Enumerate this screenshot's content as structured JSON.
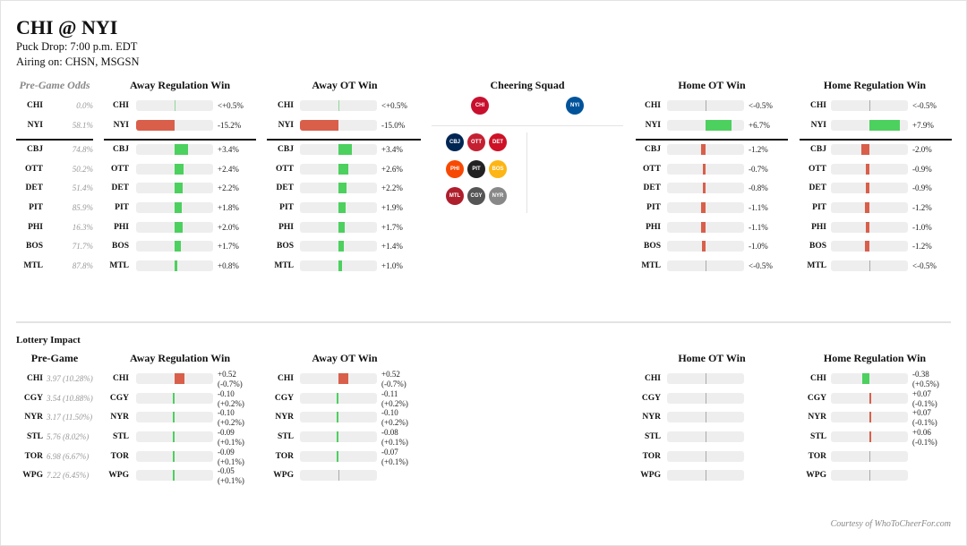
{
  "header": {
    "title": "CHI @ NYI",
    "puck_drop": "Puck Drop: 7:00 p.m. EDT",
    "airing": "Airing on: CHSN, MSGSN"
  },
  "colors": {
    "positive": "#4cd05e",
    "negative": "#d95f4a",
    "track": "#eeeeee",
    "neutral": "#aaaaaa"
  },
  "playoff": {
    "pregame_header": "Pre-Game Odds",
    "columns": [
      "Away Regulation Win",
      "Away OT Win",
      "Home OT Win",
      "Home Regulation Win"
    ],
    "cheering_header": "Cheering Squad",
    "teams": [
      {
        "team": "CHI",
        "odds": "0.0%",
        "values": [
          0.3,
          0.3,
          -0.3,
          -0.3
        ],
        "labels": [
          "<+0.5%",
          "<+0.5%",
          "<-0.5%",
          "<-0.5%"
        ]
      },
      {
        "team": "NYI",
        "odds": "58.1%",
        "values": [
          -15.2,
          -15.0,
          6.7,
          7.9
        ],
        "labels": [
          "-15.2%",
          "-15.0%",
          "+6.7%",
          "+7.9%"
        ]
      },
      {
        "team": "CBJ",
        "odds": "74.8%",
        "values": [
          3.4,
          3.4,
          -1.2,
          -2.0
        ],
        "labels": [
          "+3.4%",
          "+3.4%",
          "-1.2%",
          "-2.0%"
        ]
      },
      {
        "team": "OTT",
        "odds": "50.2%",
        "values": [
          2.4,
          2.6,
          -0.7,
          -0.9
        ],
        "labels": [
          "+2.4%",
          "+2.6%",
          "-0.7%",
          "-0.9%"
        ]
      },
      {
        "team": "DET",
        "odds": "51.4%",
        "values": [
          2.2,
          2.2,
          -0.8,
          -0.9
        ],
        "labels": [
          "+2.2%",
          "+2.2%",
          "-0.8%",
          "-0.9%"
        ]
      },
      {
        "team": "PIT",
        "odds": "85.9%",
        "values": [
          1.8,
          1.9,
          -1.1,
          -1.2
        ],
        "labels": [
          "+1.8%",
          "+1.9%",
          "-1.1%",
          "-1.2%"
        ]
      },
      {
        "team": "PHI",
        "odds": "16.3%",
        "values": [
          2.0,
          1.7,
          -1.1,
          -1.0
        ],
        "labels": [
          "+2.0%",
          "+1.7%",
          "-1.1%",
          "-1.0%"
        ]
      },
      {
        "team": "BOS",
        "odds": "71.7%",
        "values": [
          1.7,
          1.4,
          -1.0,
          -1.2
        ],
        "labels": [
          "+1.7%",
          "+1.4%",
          "-1.0%",
          "-1.2%"
        ]
      },
      {
        "team": "MTL",
        "odds": "87.8%",
        "values": [
          0.8,
          1.0,
          -0.3,
          -0.3
        ],
        "labels": [
          "+0.8%",
          "+1.0%",
          "<-0.5%",
          "<-0.5%"
        ]
      }
    ],
    "cheering": {
      "away_logo": {
        "icon": "blackhawks-logo",
        "abbr": "CHI",
        "color": "#c8102e"
      },
      "home_logo": {
        "icon": "islanders-logo",
        "abbr": "NYI",
        "color": "#00539b"
      },
      "squad": [
        {
          "icon": "blue-jackets-logo",
          "abbr": "CBJ",
          "color": "#002654"
        },
        {
          "icon": "senators-logo",
          "abbr": "OTT",
          "color": "#c52032"
        },
        {
          "icon": "red-wings-logo",
          "abbr": "DET",
          "color": "#ce1126"
        },
        {
          "icon": "flyers-logo",
          "abbr": "PHI",
          "color": "#f74902"
        },
        {
          "icon": "penguins-logo",
          "abbr": "PIT",
          "color": "#222222"
        },
        {
          "icon": "bruins-logo",
          "abbr": "BOS",
          "color": "#fcb514"
        },
        {
          "icon": "canadiens-logo",
          "abbr": "MTL",
          "color": "#af1e2d"
        },
        {
          "icon": "flames-logo",
          "abbr": "CGY",
          "color": "#555555"
        },
        {
          "icon": "rangers-logo",
          "abbr": "NYR",
          "color": "#888888"
        }
      ]
    }
  },
  "lottery": {
    "title": "Lottery Impact",
    "pregame_header": "Pre-Game",
    "columns": [
      "Away Regulation Win",
      "Away OT Win",
      "Home OT Win",
      "Home Regulation Win"
    ],
    "teams": [
      {
        "team": "CHI",
        "pregame": "3.97 (10.28%)",
        "values": [
          0.52,
          0.52,
          0,
          -0.38
        ],
        "labels": [
          [
            "+0.52",
            "(-0.7%)"
          ],
          [
            "+0.52",
            "(-0.7%)"
          ],
          [
            "",
            ""
          ],
          [
            "-0.38",
            "(+0.5%)"
          ]
        ]
      },
      {
        "team": "CGY",
        "pregame": "3.54 (10.88%)",
        "values": [
          -0.1,
          -0.11,
          0,
          0.07
        ],
        "labels": [
          [
            "-0.10",
            "(+0.2%)"
          ],
          [
            "-0.11",
            "(+0.2%)"
          ],
          [
            "",
            ""
          ],
          [
            "+0.07",
            "(-0.1%)"
          ]
        ]
      },
      {
        "team": "NYR",
        "pregame": "3.17 (11.50%)",
        "values": [
          -0.1,
          -0.1,
          0,
          0.07
        ],
        "labels": [
          [
            "-0.10",
            "(+0.2%)"
          ],
          [
            "-0.10",
            "(+0.2%)"
          ],
          [
            "",
            ""
          ],
          [
            "+0.07",
            "(-0.1%)"
          ]
        ]
      },
      {
        "team": "STL",
        "pregame": "5.76 (8.02%)",
        "values": [
          -0.09,
          -0.08,
          0,
          0.06
        ],
        "labels": [
          [
            "-0.09",
            "(+0.1%)"
          ],
          [
            "-0.08",
            "(+0.1%)"
          ],
          [
            "",
            ""
          ],
          [
            "+0.06",
            "(-0.1%)"
          ]
        ]
      },
      {
        "team": "TOR",
        "pregame": "6.98 (6.67%)",
        "values": [
          -0.09,
          -0.07,
          0,
          0
        ],
        "labels": [
          [
            "-0.09",
            "(+0.1%)"
          ],
          [
            "-0.07",
            "(+0.1%)"
          ],
          [
            "",
            ""
          ],
          [
            "",
            ""
          ]
        ]
      },
      {
        "team": "WPG",
        "pregame": "7.22 (6.45%)",
        "values": [
          -0.05,
          0,
          0,
          0
        ],
        "labels": [
          [
            "-0.05",
            "(+0.1%)"
          ],
          [
            "",
            ""
          ],
          [
            "",
            ""
          ],
          [
            "",
            ""
          ]
        ]
      }
    ]
  },
  "footer": {
    "credit": "Courtesy of WhoToCheerFor.com"
  }
}
